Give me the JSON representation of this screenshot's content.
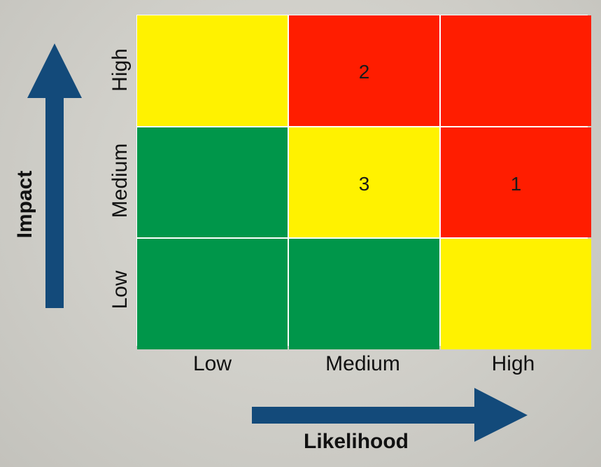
{
  "axes": {
    "x_title": "Likelihood",
    "y_title": "Impact"
  },
  "columns": [
    "Low",
    "Medium",
    "High"
  ],
  "rows": [
    "High",
    "Medium",
    "Low"
  ],
  "colors": {
    "green": "#00964a",
    "yellow": "#fff200",
    "red": "#ff1d00",
    "arrow": "#134a7a"
  },
  "cells": [
    [
      {
        "color": "yellow",
        "label": ""
      },
      {
        "color": "red",
        "label": "2"
      },
      {
        "color": "red",
        "label": ""
      }
    ],
    [
      {
        "color": "green",
        "label": ""
      },
      {
        "color": "yellow",
        "label": "3"
      },
      {
        "color": "red",
        "label": "1"
      }
    ],
    [
      {
        "color": "green",
        "label": ""
      },
      {
        "color": "green",
        "label": ""
      },
      {
        "color": "yellow",
        "label": ""
      }
    ]
  ],
  "icons": {
    "impact_arrow": "arrow-up-icon",
    "likelihood_arrow": "arrow-right-icon"
  }
}
